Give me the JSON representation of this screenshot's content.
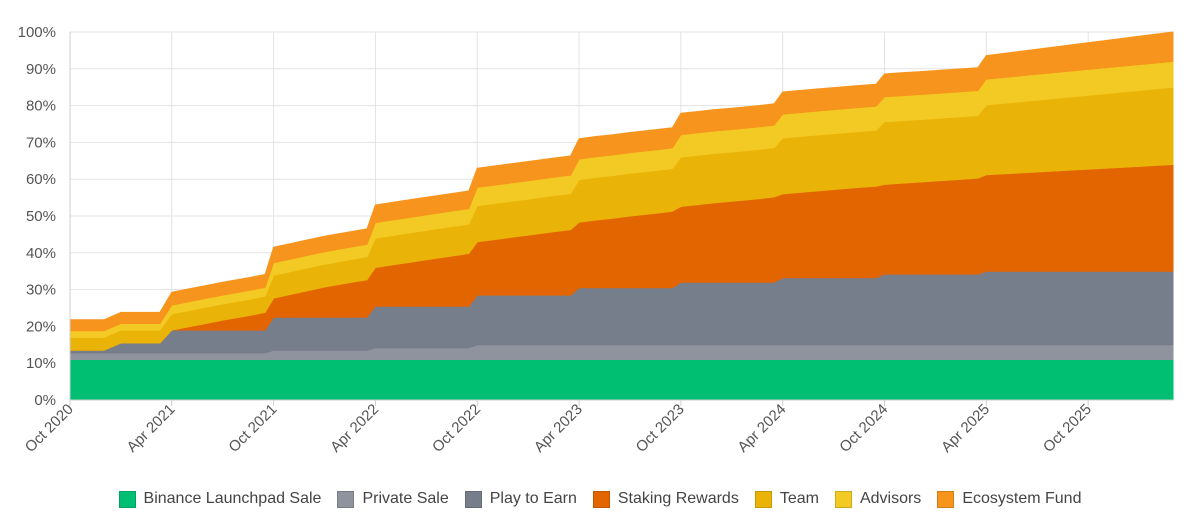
{
  "chart_data": {
    "type": "area",
    "stacked": true,
    "title": "",
    "xlabel": "",
    "ylabel": "",
    "ylim": [
      0,
      100
    ],
    "y_ticks": [
      "0%",
      "10%",
      "20%",
      "30%",
      "40%",
      "50%",
      "60%",
      "70%",
      "80%",
      "90%",
      "100%"
    ],
    "x_ticks": [
      {
        "label": "Oct 2020",
        "month": 0
      },
      {
        "label": "Apr 2021",
        "month": 6
      },
      {
        "label": "Oct 2021",
        "month": 12
      },
      {
        "label": "Apr 2022",
        "month": 18
      },
      {
        "label": "Oct 2022",
        "month": 24
      },
      {
        "label": "Apr 2023",
        "month": 30
      },
      {
        "label": "Oct 2023",
        "month": 36
      },
      {
        "label": "Apr 2024",
        "month": 42
      },
      {
        "label": "Oct 2024",
        "month": 48
      },
      {
        "label": "Apr 2025",
        "month": 54
      },
      {
        "label": "Oct 2025",
        "month": 60
      }
    ],
    "x": [
      0,
      1.5,
      2,
      3,
      4.5,
      5.3,
      6,
      7,
      8,
      9,
      10.6,
      11.5,
      12,
      13,
      14,
      15,
      16.6,
      17.5,
      18,
      19,
      20,
      21,
      22.6,
      23.5,
      24,
      25,
      26,
      27,
      28.6,
      29.5,
      30,
      31,
      32,
      33,
      34.6,
      35.5,
      36,
      37,
      38,
      39,
      40.6,
      41.5,
      42,
      43,
      44,
      45,
      46.6,
      47.5,
      48,
      49,
      50,
      51,
      52.6,
      53.5,
      54,
      65
    ],
    "series": [
      {
        "name": "Binance Launchpad Sale",
        "color": "#00bf72",
        "values": [
          11,
          11,
          11,
          11,
          11,
          11,
          11,
          11,
          11,
          11,
          11,
          11,
          11,
          11,
          11,
          11,
          11,
          11,
          11,
          11,
          11,
          11,
          11,
          11,
          11,
          11,
          11,
          11,
          11,
          11,
          11,
          11,
          11,
          11,
          11,
          11,
          11,
          11,
          11,
          11,
          11,
          11,
          11,
          11,
          11,
          11,
          11,
          11,
          11,
          11,
          11,
          11,
          11,
          11,
          11,
          11
        ]
      },
      {
        "name": "Private Sale",
        "color": "#8e939d",
        "values": [
          1.8,
          1.8,
          1.8,
          1.8,
          1.8,
          1.8,
          1.8,
          1.8,
          1.8,
          1.8,
          1.8,
          1.8,
          2.5,
          2.5,
          2.5,
          2.5,
          2.5,
          2.5,
          3.2,
          3.2,
          3.2,
          3.2,
          3.2,
          3.2,
          4,
          4,
          4,
          4,
          4,
          4,
          4,
          4,
          4,
          4,
          4,
          4,
          4,
          4,
          4,
          4,
          4,
          4,
          4,
          4,
          4,
          4,
          4,
          4,
          4,
          4,
          4,
          4,
          4,
          4,
          4,
          4
        ]
      },
      {
        "name": "Play to Earn",
        "color": "#767d8b",
        "values": [
          0.7,
          0.7,
          0.7,
          2.7,
          2.7,
          2.7,
          6.2,
          6.2,
          6.2,
          6.2,
          6.2,
          6.2,
          9,
          9,
          9,
          9,
          9,
          9,
          11.3,
          11.3,
          11.3,
          11.3,
          11.3,
          11.3,
          13.5,
          13.5,
          13.5,
          13.5,
          13.5,
          13.5,
          15.5,
          15.5,
          15.5,
          15.5,
          15.5,
          15.5,
          17,
          17,
          17,
          17,
          17,
          17,
          18.2,
          18.2,
          18.2,
          18.2,
          18.2,
          18.2,
          19.2,
          19.2,
          19.2,
          19.2,
          19.2,
          19.2,
          20,
          20
        ]
      },
      {
        "name": "Staking Rewards",
        "color": "#e36500",
        "values": [
          0,
          0,
          0,
          0,
          0,
          0,
          0,
          0.9,
          1.8,
          2.7,
          4,
          4.8,
          5.2,
          6.2,
          7.2,
          8.2,
          9.5,
          10.2,
          10.5,
          11.2,
          11.9,
          12.6,
          13.7,
          14.3,
          14.5,
          15.1,
          15.7,
          16.3,
          17.3,
          17.8,
          17.8,
          18.4,
          18.9,
          19.5,
          20.3,
          20.8,
          20.6,
          21.1,
          21.6,
          22,
          22.7,
          23.2,
          22.8,
          23.2,
          23.6,
          24,
          24.6,
          24.9,
          24.4,
          24.7,
          25,
          25.3,
          25.8,
          26.1,
          26.2,
          29
        ]
      },
      {
        "name": "Team",
        "color": "#eab308",
        "values": [
          3.5,
          3.5,
          3.5,
          3.5,
          3.5,
          3.5,
          4.4,
          4.4,
          4.4,
          4.4,
          4.4,
          4.4,
          6.2,
          6.2,
          6.2,
          6.2,
          6.2,
          6.2,
          8,
          8,
          8,
          8,
          8,
          8,
          9.8,
          9.8,
          9.8,
          9.8,
          9.8,
          9.8,
          11.6,
          11.6,
          11.6,
          11.6,
          11.6,
          11.6,
          13.4,
          13.4,
          13.4,
          13.4,
          13.4,
          13.4,
          15.2,
          15.2,
          15.2,
          15.2,
          15.2,
          15.2,
          17,
          17,
          17,
          17,
          17,
          17,
          19,
          21
        ]
      },
      {
        "name": "Advisors",
        "color": "#f3c924",
        "values": [
          1.8,
          1.8,
          1.8,
          1.8,
          1.8,
          1.8,
          2.4,
          2.4,
          2.4,
          2.4,
          2.4,
          2.4,
          3.4,
          3.4,
          3.4,
          3.4,
          3.4,
          3.4,
          4.2,
          4.2,
          4.2,
          4.2,
          4.2,
          4.2,
          5,
          5,
          5,
          5,
          5,
          5,
          5.6,
          5.6,
          5.6,
          5.6,
          5.6,
          5.6,
          6.1,
          6.1,
          6.1,
          6.1,
          6.1,
          6.1,
          6.5,
          6.5,
          6.5,
          6.5,
          6.5,
          6.5,
          6.8,
          6.8,
          6.8,
          6.8,
          6.8,
          6.8,
          7,
          7
        ]
      },
      {
        "name": "Ecosystem Fund",
        "color": "#f7941d",
        "values": [
          3,
          3,
          3,
          3,
          3,
          3,
          3.5,
          3.5,
          3.5,
          3.5,
          3.5,
          3.5,
          4.2,
          4.2,
          4.2,
          4.2,
          4.2,
          4.2,
          4.8,
          4.8,
          4.8,
          4.8,
          4.8,
          4.8,
          5.2,
          5.2,
          5.2,
          5.2,
          5.2,
          5.2,
          5.5,
          5.5,
          5.5,
          5.5,
          5.5,
          5.5,
          5.8,
          5.8,
          5.8,
          5.8,
          5.8,
          5.8,
          6,
          6,
          6,
          6,
          6,
          6,
          6.2,
          6.2,
          6.2,
          6.2,
          6.2,
          6.2,
          6.4,
          8
        ]
      }
    ],
    "legend_position": "bottom"
  }
}
